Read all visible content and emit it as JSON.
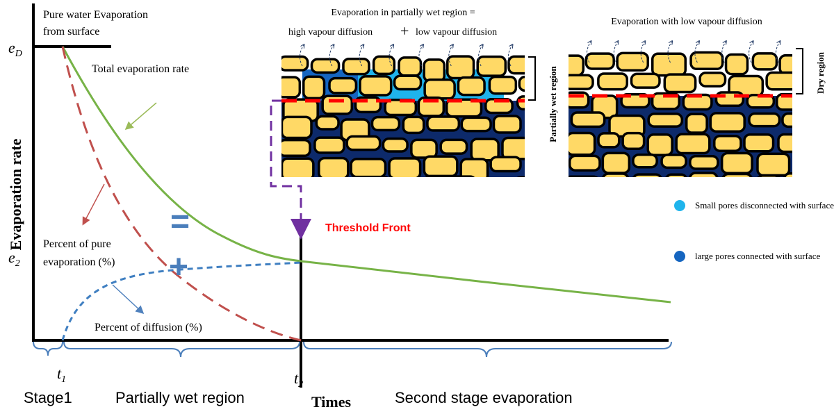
{
  "top_left_label": [
    "Pure water Evaporation",
    "from surface"
  ],
  "e_d": {
    "symbol": "e",
    "subscript": "D"
  },
  "e_2": {
    "symbol": "e",
    "subscript": "2"
  },
  "t_1": {
    "symbol": "t",
    "subscript": "1"
  },
  "t_2": {
    "symbol": "t",
    "subscript": "2"
  },
  "y_axis_label": "Evaporation rate",
  "x_axis_label": "Times",
  "total_label": "Total evaporation rate",
  "pure_label": [
    "Percent of pure",
    "evaporation  (%)"
  ],
  "diffusion_label": "Percent of diffusion  (%)",
  "equals": "=",
  "plus": "+",
  "threshold": "Threshold Front",
  "stages": [
    "Stage1",
    "Partially wet region",
    "Second stage evaporation"
  ],
  "panel1": {
    "title": "Evaporation in partially wet region =",
    "left": "high vapour diffusion",
    "op": "+",
    "right": "low vapour diffusion",
    "side": "Partially wet region"
  },
  "panel2": {
    "title": "Evaporation with low vapour diffusion",
    "side": "Dry region"
  },
  "legend": [
    "Small pores disconnected with surface",
    "large pores connected with surface"
  ]
}
